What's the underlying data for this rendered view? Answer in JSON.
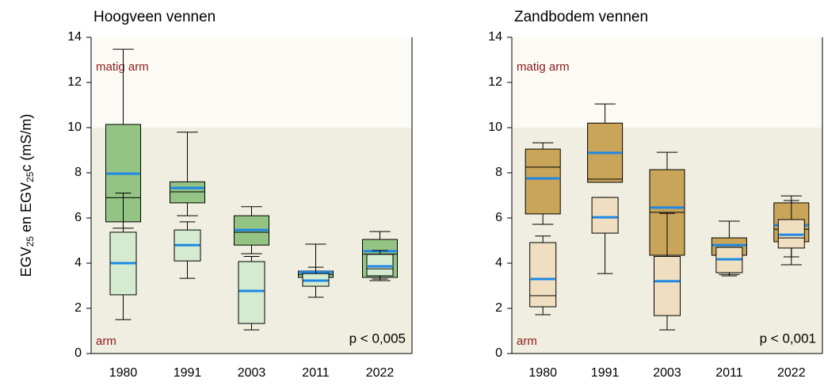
{
  "chart_data": [
    {
      "type": "box",
      "title": "Hoogveen vennen",
      "ylabel": [
        "EGV",
        "25",
        " en EGV",
        "25",
        "c (mS/m)"
      ],
      "categories": [
        "1980",
        "1991",
        "2003",
        "2011",
        "2022"
      ],
      "ylim": [
        0,
        14
      ],
      "yticks": [
        0,
        2,
        4,
        6,
        8,
        10,
        12,
        14
      ],
      "zones": [
        {
          "label": "arm",
          "from": 0,
          "to": 10,
          "color": "#f0eee0"
        },
        {
          "label": "matig arm",
          "from": 10,
          "to": 14,
          "color": "#fbfaf5"
        }
      ],
      "annotation": "p < 0,005",
      "mean_color": "#1e88e5",
      "series": [
        {
          "color": "#94c484",
          "low": [
            5.55,
            6.1,
            4.42,
            3.1,
            3.23
          ],
          "q1": [
            5.83,
            6.67,
            4.8,
            3.37,
            3.37
          ],
          "median": [
            6.9,
            7.16,
            5.37,
            3.5,
            4.4
          ],
          "q3": [
            10.14,
            7.6,
            6.1,
            3.65,
            5.05
          ],
          "high": [
            13.47,
            9.8,
            6.5,
            4.84,
            5.4
          ],
          "mean": [
            7.96,
            7.33,
            5.47,
            3.6,
            4.53
          ]
        },
        {
          "color": "#d5ebd0",
          "low": [
            1.5,
            3.33,
            1.05,
            2.49,
            3.3
          ],
          "q1": [
            2.6,
            4.1,
            1.33,
            2.98,
            3.44
          ],
          "median": [
            4.03,
            4.8,
            2.77,
            3.23,
            3.75
          ],
          "q3": [
            5.37,
            5.47,
            4.07,
            3.54,
            4.39
          ],
          "high": [
            7.1,
            5.83,
            4.3,
            3.82,
            4.56
          ],
          "mean": [
            4.0,
            4.8,
            2.77,
            3.23,
            3.86
          ]
        }
      ]
    },
    {
      "type": "box",
      "title": "Zandbodem vennen",
      "categories": [
        "1980",
        "1991",
        "2003",
        "2011",
        "2022"
      ],
      "ylim": [
        0,
        14
      ],
      "yticks": [
        0,
        2,
        4,
        6,
        8,
        10,
        12,
        14
      ],
      "zones": [
        {
          "label": "arm",
          "from": 0,
          "to": 10,
          "color": "#f0eee0"
        },
        {
          "label": "matig arm",
          "from": 10,
          "to": 14,
          "color": "#fbfaf5"
        }
      ],
      "annotation": "p < 0,001",
      "mean_color": "#1e88e5",
      "series": [
        {
          "color": "#c9a55a",
          "low": [
            5.72,
            7.6,
            4.35,
            3.5,
            3.93
          ],
          "q1": [
            6.18,
            7.58,
            4.35,
            4.35,
            4.95
          ],
          "median": [
            8.25,
            7.72,
            6.25,
            4.8,
            5.5
          ],
          "q3": [
            9.05,
            10.2,
            8.14,
            5.12,
            6.67
          ],
          "high": [
            9.33,
            11.05,
            8.91,
            5.86,
            6.98
          ],
          "mean": [
            7.75,
            8.88,
            6.46,
            4.8,
            5.68
          ]
        },
        {
          "color": "#efdfc0",
          "low": [
            1.72,
            3.54,
            1.05,
            3.44,
            4.28
          ],
          "q1": [
            2.07,
            5.33,
            1.68,
            3.58,
            4.67
          ],
          "median": [
            2.56,
            6.03,
            3.2,
            4.17,
            5.12
          ],
          "q3": [
            4.91,
            6.91,
            4.3,
            4.7,
            5.93
          ],
          "high": [
            5.2,
            6.91,
            6.2,
            4.56,
            6.77
          ],
          "mean": [
            3.3,
            6.03,
            3.2,
            4.17,
            5.26
          ]
        }
      ]
    }
  ]
}
